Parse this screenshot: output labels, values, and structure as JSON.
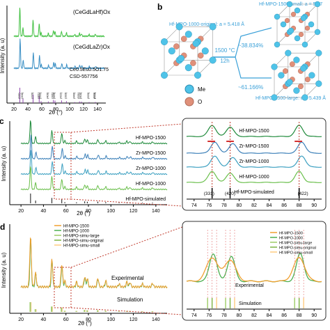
{
  "panel_labels": {
    "b": "b",
    "c": "c",
    "d": "d"
  },
  "panel_a": {
    "ylabel": "Intensity (a. u)",
    "xlabel": "2θ (°)",
    "xticks": [
      "20",
      "40",
      "60",
      "80",
      "100",
      "120",
      "140"
    ],
    "labels": {
      "s1": "(CeGdLaHf)Ox",
      "s2": "(CeGdLaZr)Ox",
      "ref_formula": "Ce0.5Eu0.5O1.75",
      "ref_csd": "CSD-557756"
    },
    "hkl": [
      "(111)",
      "(200)",
      "(220)",
      "(311)",
      "(222)",
      "(400)",
      "(331)",
      "(420)",
      "(422)",
      "(333)",
      "(440)",
      "(531)",
      "(600)",
      "(620)",
      "(533)",
      "(622)"
    ]
  },
  "panel_b": {
    "orig_label": "Hf-MPO-1000-original: a = 5.418 Å",
    "small_label": "Hf-MPO-1500-small: a = 5.37",
    "large_label": "Hf-MPO-1500-large: a = 5.439 Å",
    "pct_small": "~38.834%",
    "pct_large": "~61.166%",
    "temp": "1500 °C",
    "time": "12h",
    "legend_me": "Me",
    "legend_o": "O",
    "colors": {
      "me": "#4fc3e8",
      "o": "#e0907a",
      "arrow": "#3aa0d8"
    }
  },
  "panel_c": {
    "ylabel": "Intensity (a. u)",
    "xlabel": "2θ (°)",
    "xticks": [
      "20",
      "40",
      "60",
      "80",
      "100",
      "120",
      "140"
    ],
    "series": [
      "Hf-MPO-1500",
      "Zr-MPO-1500",
      "Zr-MPO-1000",
      "Hf-MPO-1000",
      "Hf-MPO-simulated"
    ],
    "zoom_xticks": [
      "74",
      "76",
      "78",
      "80",
      "82",
      "84",
      "86",
      "88",
      "90"
    ],
    "zoom_hkl": [
      "(331)",
      "(420)",
      "(422)"
    ],
    "colors": {
      "hf1500": "#1e8a3a",
      "zr1500": "#3a7fb8",
      "zr1000": "#3a9fc0",
      "hf1000": "#6abf4b",
      "sim": "#111111"
    }
  },
  "panel_d": {
    "ylabel": "Intensity (a. u)",
    "xlabel": "2θ (°)",
    "xticks": [
      "20",
      "40",
      "60",
      "80",
      "100",
      "120",
      "140"
    ],
    "legend": [
      "Hf-MPO-1500",
      "Hf-MPO-1000",
      "Hf-MPO-simu-large",
      "Hf-MPO-simu-original",
      "Hf-MPO-simu-small"
    ],
    "experimental": "Experimental",
    "simulation": "Simulation",
    "zoom_xticks": [
      "74",
      "76",
      "78",
      "80",
      "82",
      "84",
      "86",
      "88",
      "90"
    ],
    "colors": {
      "hf1500": "#f0a030",
      "hf1000": "#4caf50",
      "large": "#9ccc65",
      "original": "#7cb342",
      "small": "#ffcc80"
    }
  },
  "chart_data": [
    {
      "type": "line",
      "panel": "a",
      "xlabel": "2θ (°)",
      "ylabel": "Intensity (a. u)",
      "xlim": [
        10,
        150
      ],
      "series": [
        {
          "name": "(CeGdLaHf)Ox",
          "peaks_x": [
            28.5,
            33,
            47.5,
            56.3,
            59,
            69.4,
            76.7,
            79,
            88.4,
            95.4,
            107.3,
            114.2,
            117,
            128,
            137
          ]
        },
        {
          "name": "(CeGdLaZr)Ox",
          "peaks_x": [
            28.8,
            33.4,
            48,
            56.9,
            59.6,
            70,
            77.4,
            79.7,
            89.2,
            96.2,
            108.4,
            115.5,
            118,
            129,
            138.5
          ]
        }
      ]
    },
    {
      "type": "line",
      "panel": "c",
      "xlabel": "2θ (°)",
      "ylabel": "Intensity (a. u)",
      "xlim": [
        10,
        150
      ],
      "series": [
        {
          "name": "Hf-MPO-1500"
        },
        {
          "name": "Zr-MPO-1500"
        },
        {
          "name": "Zr-MPO-1000"
        },
        {
          "name": "Hf-MPO-1000"
        },
        {
          "name": "Hf-MPO-simulated"
        }
      ]
    },
    {
      "type": "line",
      "panel": "d",
      "xlabel": "2θ (°)",
      "ylabel": "Intensity (a. u)",
      "xlim": [
        10,
        150
      ],
      "series": [
        {
          "name": "Hf-MPO-1500"
        },
        {
          "name": "Hf-MPO-1000"
        },
        {
          "name": "Hf-MPO-simu-large"
        },
        {
          "name": "Hf-MPO-simu-original"
        },
        {
          "name": "Hf-MPO-simu-small"
        }
      ]
    }
  ]
}
